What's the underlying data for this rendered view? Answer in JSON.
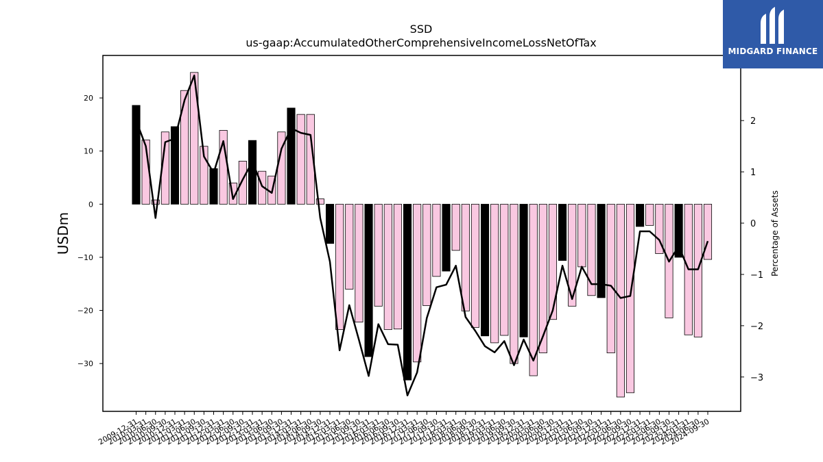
{
  "brand": {
    "name": "MIDGARD FINANCE",
    "bg_color": "#2f5aa8"
  },
  "chart_data": {
    "type": "bar",
    "title": "SSD",
    "subtitle": "us-gaap:AccumulatedOtherComprehensiveIncomeLossNetOfTax",
    "ylabel": "USDm",
    "y2label": "Percentage of Assets",
    "ylim": [
      -39,
      28
    ],
    "y2lim": [
      -3.67,
      3.27
    ],
    "yticks": [
      -30,
      -20,
      -10,
      0,
      10,
      20
    ],
    "y2ticks": [
      -3,
      -2,
      -1,
      0,
      1,
      2
    ],
    "grid": false,
    "categories": [
      "2009-12-31",
      "2010-03-31",
      "2010-06-30",
      "2010-09-30",
      "2010-12-31",
      "2011-03-31",
      "2011-06-30",
      "2011-09-30",
      "2011-12-31",
      "2012-03-31",
      "2012-06-30",
      "2012-09-30",
      "2012-12-31",
      "2013-03-31",
      "2013-06-30",
      "2013-09-30",
      "2013-12-31",
      "2014-03-31",
      "2014-06-30",
      "2014-09-30",
      "2014-12-31",
      "2015-03-31",
      "2015-06-30",
      "2015-09-30",
      "2015-12-31",
      "2016-03-31",
      "2016-06-30",
      "2016-09-30",
      "2016-12-31",
      "2017-03-31",
      "2017-06-30",
      "2017-09-30",
      "2017-12-31",
      "2018-03-31",
      "2018-06-30",
      "2018-09-30",
      "2018-12-31",
      "2019-03-31",
      "2019-06-30",
      "2019-09-30",
      "2019-12-31",
      "2020-03-31",
      "2020-06-30",
      "2020-09-30",
      "2020-12-31",
      "2021-03-31",
      "2021-06-30",
      "2021-09-30",
      "2021-12-31",
      "2022-03-31",
      "2022-06-30",
      "2022-09-30",
      "2022-12-31",
      "2023-03-31",
      "2023-06-30",
      "2023-09-30",
      "2023-12-31",
      "2024-03-31",
      "2024-06-30",
      "2024-09-30"
    ],
    "series": [
      {
        "name": "",
        "type": "bar",
        "axis": "left",
        "values": [
          18.6,
          12.1,
          0.8,
          13.6,
          14.6,
          21.4,
          24.8,
          10.9,
          6.7,
          13.9,
          4.0,
          8.1,
          12.0,
          6.2,
          5.3,
          13.6,
          18.1,
          16.9,
          16.9,
          1.0,
          -7.4,
          -23.6,
          -16.0,
          -22.2,
          -28.7,
          -19.2,
          -23.6,
          -23.5,
          -33.1,
          -29.7,
          -19.1,
          -13.6,
          -12.6,
          -8.7,
          -20.1,
          -23.2,
          -24.8,
          -26.1,
          -24.7,
          -30.0,
          -25.0,
          -32.3,
          -28.0,
          -21.7,
          -10.6,
          -19.2,
          -11.8,
          -17.2,
          -17.6,
          -28.0,
          -36.3,
          -35.5,
          -4.2,
          -4.0,
          -9.3,
          -21.4,
          -10.0,
          -24.6,
          -25.0,
          -10.4
        ]
      },
      {
        "name": "",
        "type": "line",
        "axis": "right",
        "values": [
          2.0,
          1.5,
          0.1,
          1.58,
          1.65,
          2.4,
          2.88,
          1.3,
          0.98,
          1.6,
          0.47,
          0.85,
          1.2,
          0.72,
          0.59,
          1.45,
          1.85,
          1.76,
          1.72,
          0.1,
          -0.75,
          -2.48,
          -1.6,
          -2.28,
          -2.98,
          -1.97,
          -2.36,
          -2.37,
          -3.36,
          -2.91,
          -1.85,
          -1.25,
          -1.2,
          -0.83,
          -1.83,
          -2.1,
          -2.4,
          -2.52,
          -2.3,
          -2.77,
          -2.27,
          -2.68,
          -2.2,
          -1.7,
          -0.83,
          -1.48,
          -0.85,
          -1.19,
          -1.19,
          -1.22,
          -1.46,
          -1.42,
          -0.16,
          -0.16,
          -0.33,
          -0.75,
          -0.45,
          -0.9,
          -0.9,
          -0.35
        ]
      }
    ],
    "bar_colors": {
      "highlight": "#000000",
      "normal": "#f9c8e1",
      "edge": "#000000"
    },
    "line_color": "#000000"
  }
}
